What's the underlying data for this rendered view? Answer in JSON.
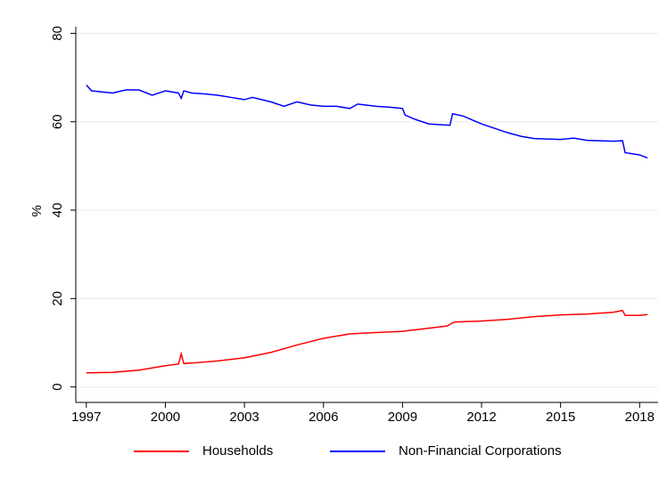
{
  "chart_data": {
    "type": "line",
    "y_label": "%",
    "xlim": [
      1996.6,
      2018.7
    ],
    "ylim": [
      -3.5,
      81.5
    ],
    "xticks": [
      1997,
      2000,
      2003,
      2006,
      2009,
      2012,
      2015,
      2018
    ],
    "yticks": [
      0,
      20,
      40,
      60,
      80
    ],
    "grid": true,
    "legend": "bottom",
    "series": [
      {
        "name": "Households",
        "color": "#ff0000",
        "x": [
          1997,
          1998,
          1999,
          2000,
          2000.5,
          2000.6,
          2000.7,
          2001,
          2002,
          2003,
          2004,
          2005,
          2006,
          2007,
          2008,
          2009,
          2010,
          2010.7,
          2010.9,
          2011,
          2012,
          2013,
          2014,
          2015,
          2016,
          2017,
          2017.35,
          2017.45,
          2018,
          2018.3
        ],
        "values": [
          3.2,
          3.3,
          3.8,
          4.8,
          5.2,
          7.5,
          5.3,
          5.4,
          5.9,
          6.6,
          7.8,
          9.5,
          11.0,
          12.0,
          12.3,
          12.6,
          13.3,
          13.8,
          14.5,
          14.7,
          14.9,
          15.3,
          15.9,
          16.3,
          16.5,
          16.9,
          17.3,
          16.2,
          16.2,
          16.4
        ]
      },
      {
        "name": "Non-Financial Corporations",
        "color": "#0000ff",
        "x": [
          1997,
          1997.2,
          1998,
          1998.5,
          1999,
          1999.5,
          2000,
          2000.5,
          2000.6,
          2000.7,
          2001,
          2001.5,
          2002,
          2002.5,
          2003,
          2003.3,
          2004,
          2004.5,
          2005,
          2005.5,
          2006,
          2006.5,
          2007,
          2007.3,
          2008,
          2008.5,
          2009,
          2009.1,
          2009.5,
          2010,
          2010.8,
          2010.9,
          2011.3,
          2012,
          2012.5,
          2013,
          2013.5,
          2014,
          2015,
          2015.5,
          2016,
          2017,
          2017.35,
          2017.45,
          2018,
          2018.3
        ],
        "values": [
          68.3,
          67.0,
          66.5,
          67.2,
          67.2,
          66.0,
          67.0,
          66.5,
          65.3,
          67.0,
          66.5,
          66.3,
          66.0,
          65.5,
          65.0,
          65.5,
          64.5,
          63.5,
          64.5,
          63.8,
          63.5,
          63.5,
          63.0,
          64.0,
          63.5,
          63.3,
          63.0,
          61.5,
          60.5,
          59.5,
          59.2,
          61.8,
          61.3,
          59.5,
          58.5,
          57.5,
          56.7,
          56.2,
          56.0,
          56.3,
          55.8,
          55.6,
          55.7,
          53.0,
          52.5,
          51.8
        ]
      }
    ]
  }
}
